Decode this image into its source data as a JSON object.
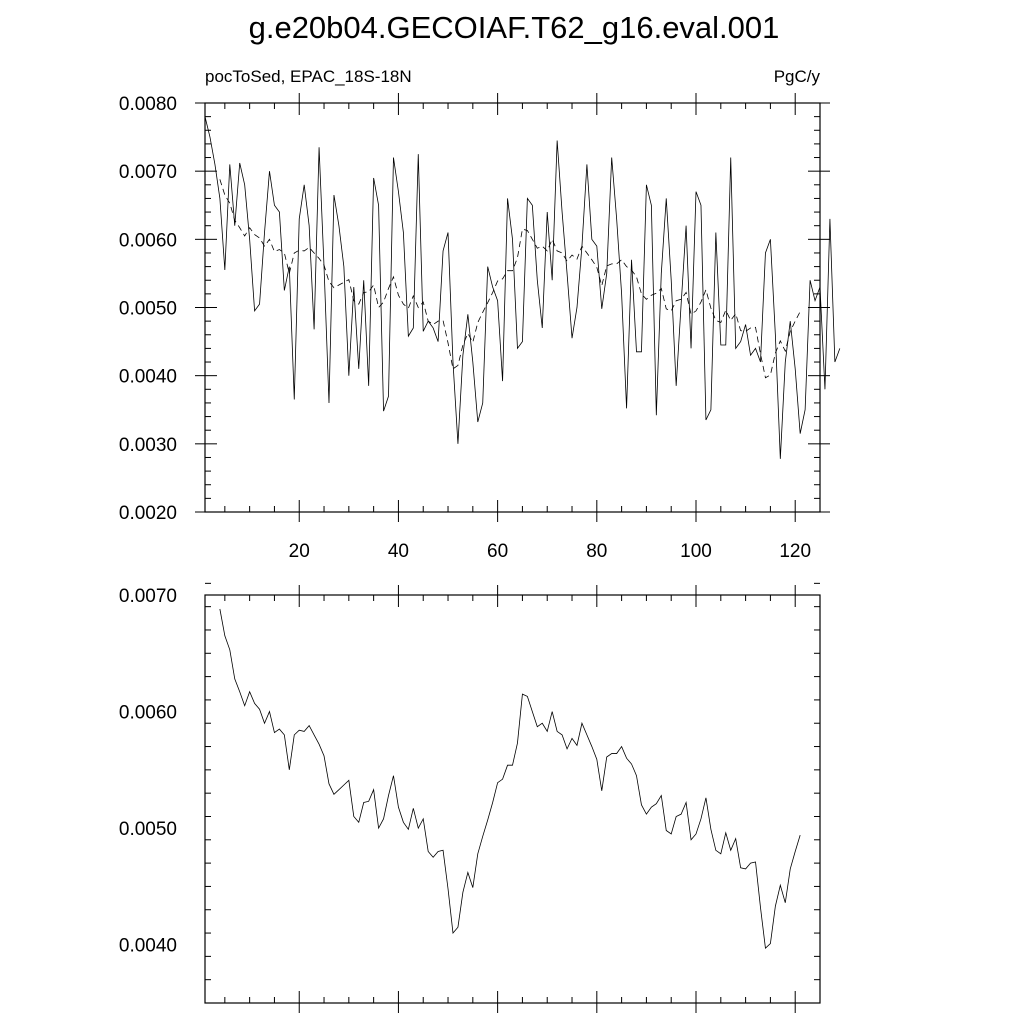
{
  "title": "g.e20b04.GECOIAF.T62_g16.eval.001",
  "chart_data": [
    {
      "type": "line",
      "left_label": "pocToSed, EPAC_18S-18N",
      "right_label": "PgC/y",
      "xlim": [
        1,
        125
      ],
      "ylim": [
        0.002,
        0.008
      ],
      "x_ticks": [
        20,
        40,
        60,
        80,
        100,
        120
      ],
      "x_tick_labels": [
        "20",
        "40",
        "60",
        "80",
        "100",
        "120"
      ],
      "y_ticks": [
        0.002,
        0.003,
        0.004,
        0.005,
        0.006,
        0.007,
        0.008
      ],
      "y_tick_labels": [
        "0.0020",
        "0.0030",
        "0.0040",
        "0.0050",
        "0.0060",
        "0.0070",
        "0.0080"
      ],
      "grid": false,
      "series": [
        {
          "style": "solid",
          "x_start": 1,
          "values": [
            0.0078,
            0.0075,
            0.0071,
            0.0066,
            0.00555,
            0.0071,
            0.0062,
            0.00712,
            0.0068,
            0.006,
            0.00495,
            0.00505,
            0.0061,
            0.007,
            0.0065,
            0.0064,
            0.00525,
            0.0056,
            0.00365,
            0.0063,
            0.0068,
            0.0062,
            0.00468,
            0.00735,
            0.0056,
            0.0036,
            0.00665,
            0.0062,
            0.0056,
            0.004,
            0.0053,
            0.0041,
            0.0054,
            0.00385,
            0.0069,
            0.0065,
            0.00348,
            0.0037,
            0.0072,
            0.0067,
            0.0061,
            0.00458,
            0.0047,
            0.00725,
            0.00465,
            0.0048,
            0.0047,
            0.0045,
            0.00583,
            0.0061,
            0.0042,
            0.003,
            0.0043,
            0.0049,
            0.0042,
            0.00332,
            0.0036,
            0.0056,
            0.0053,
            0.0051,
            0.00392,
            0.0066,
            0.006,
            0.0044,
            0.0045,
            0.0066,
            0.0065,
            0.0054,
            0.0047,
            0.0064,
            0.0054,
            0.00745,
            0.0064,
            0.0055,
            0.00455,
            0.005,
            0.0059,
            0.0071,
            0.006,
            0.0059,
            0.00498,
            0.0055,
            0.0072,
            0.0063,
            0.0052,
            0.00352,
            0.0057,
            0.00435,
            0.00435,
            0.0068,
            0.0065,
            0.00342,
            0.0055,
            0.0066,
            0.0054,
            0.00385,
            0.00505,
            0.0062,
            0.0044,
            0.0067,
            0.0065,
            0.00335,
            0.0035,
            0.0061,
            0.00445,
            0.00445,
            0.0072,
            0.0044,
            0.0045,
            0.00475,
            0.0043,
            0.0044,
            0.0042,
            0.0058,
            0.006,
            0.0046,
            0.00278,
            0.0042,
            0.0048,
            0.0041,
            0.00315,
            0.0035,
            0.0054,
            0.0051,
            0.0053,
            0.0038,
            0.0063,
            0.0042,
            0.0044
          ]
        },
        {
          "style": "dashed",
          "x_start": 4,
          "values": [
            0.00688,
            0.00665,
            0.00653,
            0.00628,
            0.00617,
            0.00605,
            0.00617,
            0.00607,
            0.00602,
            0.0059,
            0.006,
            0.00582,
            0.00585,
            0.0058,
            0.0055,
            0.0058,
            0.00584,
            0.00583,
            0.00588,
            0.0058,
            0.00572,
            0.00562,
            0.00538,
            0.00529,
            0.00533,
            0.00537,
            0.00541,
            0.0051,
            0.00505,
            0.00522,
            0.00523,
            0.00533,
            0.005,
            0.00508,
            0.00528,
            0.00545,
            0.00518,
            0.00505,
            0.00499,
            0.00517,
            0.005,
            0.00508,
            0.0048,
            0.00475,
            0.0048,
            0.00481,
            0.00448,
            0.0041,
            0.00415,
            0.00445,
            0.00462,
            0.00449,
            0.00478,
            0.00493,
            0.00507,
            0.00522,
            0.00539,
            0.00542,
            0.00554,
            0.00554,
            0.00573,
            0.00615,
            0.00613,
            0.006,
            0.00587,
            0.0059,
            0.00583,
            0.006,
            0.00583,
            0.0058,
            0.00568,
            0.00577,
            0.00571,
            0.0059,
            0.0058,
            0.0057,
            0.00559,
            0.00532,
            0.00561,
            0.00564,
            0.00564,
            0.0057,
            0.0056,
            0.00555,
            0.00545,
            0.0052,
            0.00512,
            0.00518,
            0.00521,
            0.00528,
            0.00498,
            0.00495,
            0.0051,
            0.00512,
            0.00522,
            0.0049,
            0.00495,
            0.00508,
            0.00526,
            0.00499,
            0.00481,
            0.00478,
            0.00496,
            0.00481,
            0.00491,
            0.00466,
            0.00465,
            0.0047,
            0.00471,
            0.00432,
            0.00397,
            0.00401,
            0.00433,
            0.00451,
            0.00436,
            0.00465,
            0.0048,
            0.00494
          ]
        }
      ]
    },
    {
      "type": "line",
      "xlim": [
        1,
        125
      ],
      "ylim": [
        0.0035,
        0.007
      ],
      "x_ticks": [
        20,
        40,
        60,
        80,
        100,
        120
      ],
      "y_ticks": [
        0.004,
        0.005,
        0.006,
        0.007
      ],
      "y_tick_labels": [
        "0.0040",
        "0.0050",
        "0.0060",
        "0.0070"
      ],
      "grid": false,
      "series": [
        {
          "style": "solid",
          "x_start": 4,
          "values": [
            0.00688,
            0.00665,
            0.00653,
            0.00628,
            0.00617,
            0.00605,
            0.00617,
            0.00607,
            0.00602,
            0.0059,
            0.006,
            0.00582,
            0.00585,
            0.0058,
            0.0055,
            0.0058,
            0.00584,
            0.00583,
            0.00588,
            0.0058,
            0.00572,
            0.00562,
            0.00538,
            0.00529,
            0.00533,
            0.00537,
            0.00541,
            0.0051,
            0.00505,
            0.00522,
            0.00523,
            0.00533,
            0.005,
            0.00508,
            0.00528,
            0.00545,
            0.00518,
            0.00505,
            0.00499,
            0.00517,
            0.005,
            0.00508,
            0.0048,
            0.00475,
            0.0048,
            0.00481,
            0.00448,
            0.0041,
            0.00415,
            0.00445,
            0.00462,
            0.00449,
            0.00478,
            0.00493,
            0.00507,
            0.00522,
            0.00539,
            0.00542,
            0.00554,
            0.00554,
            0.00573,
            0.00615,
            0.00613,
            0.006,
            0.00587,
            0.0059,
            0.00583,
            0.006,
            0.00583,
            0.0058,
            0.00568,
            0.00577,
            0.00571,
            0.0059,
            0.0058,
            0.0057,
            0.00559,
            0.00532,
            0.00561,
            0.00564,
            0.00564,
            0.0057,
            0.0056,
            0.00555,
            0.00545,
            0.0052,
            0.00512,
            0.00518,
            0.00521,
            0.00528,
            0.00498,
            0.00495,
            0.0051,
            0.00512,
            0.00522,
            0.0049,
            0.00495,
            0.00508,
            0.00526,
            0.00499,
            0.00481,
            0.00478,
            0.00496,
            0.00481,
            0.00491,
            0.00466,
            0.00465,
            0.0047,
            0.00471,
            0.00432,
            0.00397,
            0.00401,
            0.00433,
            0.00451,
            0.00436,
            0.00465,
            0.0048,
            0.00494
          ]
        }
      ]
    }
  ]
}
